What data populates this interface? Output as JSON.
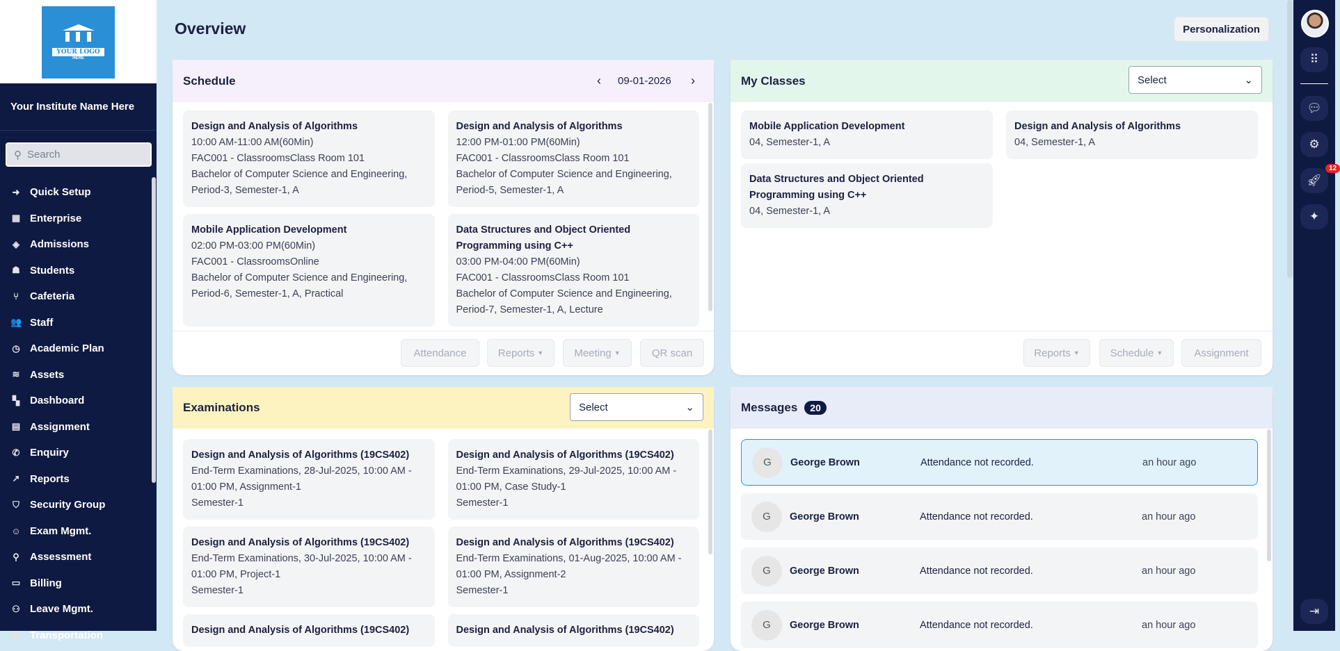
{
  "sidebar": {
    "logo_text": "YOUR LOGO",
    "logo_sub": "HERE",
    "institute": "Your Institute Name Here",
    "search_placeholder": "Search",
    "items": [
      {
        "label": "Quick Setup",
        "icon": "sign-in-icon",
        "glyph": "➜"
      },
      {
        "label": "Enterprise",
        "icon": "building-icon",
        "glyph": "▦"
      },
      {
        "label": "Admissions",
        "icon": "ticket-icon",
        "glyph": "◈"
      },
      {
        "label": "Students",
        "icon": "students-icon",
        "glyph": "☗"
      },
      {
        "label": "Cafeteria",
        "icon": "utensils-icon",
        "glyph": "⑂"
      },
      {
        "label": "Staff",
        "icon": "users-icon",
        "glyph": "👥"
      },
      {
        "label": "Academic Plan",
        "icon": "stopwatch-icon",
        "glyph": "◷"
      },
      {
        "label": "Assets",
        "icon": "database-icon",
        "glyph": "≋"
      },
      {
        "label": "Dashboard",
        "icon": "dashboard-icon",
        "glyph": "▚"
      },
      {
        "label": "Assignment",
        "icon": "document-icon",
        "glyph": "▤"
      },
      {
        "label": "Enquiry",
        "icon": "phone-icon",
        "glyph": "✆"
      },
      {
        "label": "Reports",
        "icon": "chart-up-icon",
        "glyph": "↗"
      },
      {
        "label": "Security Group",
        "icon": "shield-icon",
        "glyph": "⛉"
      },
      {
        "label": "Exam Mgmt.",
        "icon": "user-tie-icon",
        "glyph": "☺"
      },
      {
        "label": "Assessment",
        "icon": "search-icon",
        "glyph": "⚲"
      },
      {
        "label": "Billing",
        "icon": "cash-register-icon",
        "glyph": "▭"
      },
      {
        "label": "Leave Mgmt.",
        "icon": "user-clock-icon",
        "glyph": "⚇"
      },
      {
        "label": "Transportation",
        "icon": "bus-icon",
        "glyph": "▣"
      }
    ]
  },
  "header": {
    "title": "Overview",
    "personalization": "Personalization"
  },
  "schedule": {
    "title": "Schedule",
    "date": "09-01-2026",
    "cards": [
      {
        "title": "Design and Analysis of Algorithms",
        "lines": [
          "10:00 AM-11:00 AM(60Min)",
          "FAC001 - ClassroomsClass Room 101",
          "Bachelor of Computer Science and Engineering, Period-3, Semester-1, A"
        ]
      },
      {
        "title": "Design and Analysis of Algorithms",
        "lines": [
          "12:00 PM-01:00 PM(60Min)",
          "FAC001 - ClassroomsClass Room 101",
          "Bachelor of Computer Science and Engineering, Period-5, Semester-1, A"
        ]
      },
      {
        "title": "Mobile Application Development",
        "lines": [
          "02:00 PM-03:00 PM(60Min)",
          "FAC001 - ClassroomsOnline",
          "Bachelor of Computer Science and Engineering, Period-6, Semester-1, A, Practical"
        ]
      },
      {
        "title": "Data Structures and Object Oriented Programming using C++",
        "lines": [
          "03:00 PM-04:00 PM(60Min)",
          "FAC001 - ClassroomsClass Room 101",
          "Bachelor of Computer Science and Engineering, Period-7, Semester-1, A, Lecture"
        ]
      }
    ],
    "buttons": {
      "attendance": "Attendance",
      "reports": "Reports",
      "meeting": "Meeting",
      "qr": "QR scan"
    }
  },
  "classes": {
    "title": "My Classes",
    "select": "Select",
    "cards": [
      {
        "title": "Mobile Application Development",
        "lines": [
          "04, Semester-1, A"
        ]
      },
      {
        "title": "Design and Analysis of Algorithms",
        "lines": [
          "04, Semester-1, A"
        ]
      },
      {
        "title": "Data Structures and Object Oriented Programming using C++",
        "lines": [
          "04, Semester-1, A"
        ]
      }
    ],
    "buttons": {
      "reports": "Reports",
      "schedule": "Schedule",
      "assignment": "Assignment"
    }
  },
  "exams": {
    "title": "Examinations",
    "select": "Select",
    "cards": [
      {
        "title": "Design and Analysis of Algorithms (19CS402)",
        "lines": [
          "End-Term Examinations, 28-Jul-2025, 10:00 AM - 01:00 PM, Assignment-1",
          "Semester-1"
        ]
      },
      {
        "title": "Design and Analysis of Algorithms (19CS402)",
        "lines": [
          "End-Term Examinations, 29-Jul-2025, 10:00 AM - 01:00 PM, Case Study-1",
          "Semester-1"
        ]
      },
      {
        "title": "Design and Analysis of Algorithms (19CS402)",
        "lines": [
          "End-Term Examinations, 30-Jul-2025, 10:00 AM - 01:00 PM, Project-1",
          "Semester-1"
        ]
      },
      {
        "title": "Design and Analysis of Algorithms (19CS402)",
        "lines": [
          "End-Term Examinations, 01-Aug-2025, 10:00 AM - 01:00 PM, Assignment-2",
          "Semester-1"
        ]
      },
      {
        "title": "Design and Analysis of Algorithms (19CS402)",
        "lines": []
      },
      {
        "title": "Design and Analysis of Algorithms (19CS402)",
        "lines": []
      }
    ]
  },
  "messages": {
    "title": "Messages",
    "count": "20",
    "items": [
      {
        "initial": "G",
        "name": "George Brown",
        "text": "Attendance not recorded.",
        "time": "an hour ago",
        "active": true
      },
      {
        "initial": "G",
        "name": "George Brown",
        "text": "Attendance not recorded.",
        "time": "an hour ago"
      },
      {
        "initial": "G",
        "name": "George Brown",
        "text": "Attendance not recorded.",
        "time": "an hour ago"
      },
      {
        "initial": "G",
        "name": "George Brown",
        "text": "Attendance not recorded.",
        "time": "an hour ago"
      }
    ]
  },
  "rail": {
    "notification_count": "12"
  },
  "colors": {
    "sidebar": "#0f1a42",
    "background": "#d3e8f5",
    "accent": "#2a94d6",
    "badge": "#e02424"
  }
}
